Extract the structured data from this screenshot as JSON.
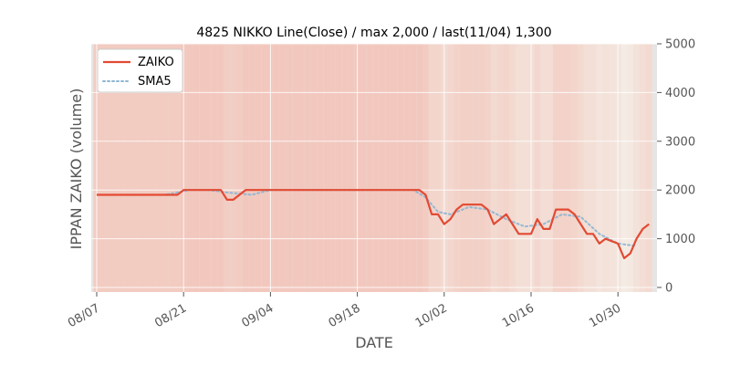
{
  "chart_data": {
    "type": "line",
    "title": "4825 NIKKO Line(Close) / max 2,000 / last(11/04) 1,300",
    "xlabel": "DATE",
    "ylabel": "IPPAN ZAIKO (volume)",
    "ylim": [
      0,
      5000
    ],
    "y_ticks": [
      "0",
      "1000",
      "2000",
      "3000",
      "4000",
      "5000"
    ],
    "y_axis_side": "right",
    "x_tick_labels": [
      "08/07",
      "08/21",
      "09/04",
      "09/18",
      "10/02",
      "10/16",
      "10/30"
    ],
    "grid": true,
    "legend_placement": "upper-left",
    "series": [
      {
        "name": "ZAIKO",
        "color": "#e24a33",
        "style": "solid",
        "x": [
          "08/07",
          "08/08",
          "08/09",
          "08/10",
          "08/11",
          "08/12",
          "08/13",
          "08/14",
          "08/15",
          "08/16",
          "08/17",
          "08/18",
          "08/19",
          "08/20",
          "08/21",
          "08/22",
          "08/23",
          "08/24",
          "08/25",
          "08/26",
          "08/27",
          "08/28",
          "08/29",
          "08/30",
          "08/31",
          "09/01",
          "09/02",
          "09/03",
          "09/04",
          "09/05",
          "09/06",
          "09/07",
          "09/08",
          "09/09",
          "09/10",
          "09/11",
          "09/12",
          "09/13",
          "09/14",
          "09/15",
          "09/16",
          "09/17",
          "09/18",
          "09/19",
          "09/20",
          "09/21",
          "09/22",
          "09/23",
          "09/24",
          "09/25",
          "09/26",
          "09/27",
          "09/28",
          "09/29",
          "09/30",
          "10/01",
          "10/02",
          "10/03",
          "10/04",
          "10/05",
          "10/06",
          "10/07",
          "10/08",
          "10/09",
          "10/10",
          "10/11",
          "10/12",
          "10/13",
          "10/14",
          "10/15",
          "10/16",
          "10/17",
          "10/18",
          "10/19",
          "10/20",
          "10/21",
          "10/22",
          "10/23",
          "10/24",
          "10/25",
          "10/26",
          "10/27",
          "10/28",
          "10/29",
          "10/30",
          "10/31",
          "11/01",
          "11/02",
          "11/03",
          "11/04"
        ],
        "values": [
          1900,
          1900,
          1900,
          1900,
          1900,
          1900,
          1900,
          1900,
          1900,
          1900,
          1900,
          1900,
          1900,
          1900,
          2000,
          2000,
          2000,
          2000,
          2000,
          2000,
          2000,
          1800,
          1800,
          1900,
          2000,
          2000,
          2000,
          2000,
          2000,
          2000,
          2000,
          2000,
          2000,
          2000,
          2000,
          2000,
          2000,
          2000,
          2000,
          2000,
          2000,
          2000,
          2000,
          2000,
          2000,
          2000,
          2000,
          2000,
          2000,
          2000,
          2000,
          2000,
          2000,
          1900,
          1500,
          1500,
          1300,
          1400,
          1600,
          1700,
          1700,
          1700,
          1700,
          1600,
          1300,
          1400,
          1500,
          1300,
          1100,
          1100,
          1100,
          1400,
          1200,
          1200,
          1600,
          1600,
          1600,
          1500,
          1300,
          1100,
          1100,
          900,
          1000,
          950,
          900,
          600,
          700,
          1000,
          1200,
          1300
        ]
      },
      {
        "name": "SMA5",
        "color": "#8eb6d3",
        "style": "dotted",
        "x": [
          "08/11",
          "08/14",
          "08/18",
          "08/22",
          "08/25",
          "08/28",
          "09/01",
          "09/04",
          "09/08",
          "09/12",
          "09/16",
          "09/20",
          "09/24",
          "09/27",
          "09/29",
          "10/01",
          "10/03",
          "10/06",
          "10/09",
          "10/12",
          "10/15",
          "10/18",
          "10/21",
          "10/24",
          "10/27",
          "10/30",
          "11/02"
        ],
        "values": [
          1900,
          1900,
          1900,
          2000,
          2000,
          1950,
          1900,
          2000,
          2000,
          2000,
          2000,
          2000,
          2000,
          2000,
          1850,
          1550,
          1500,
          1650,
          1600,
          1400,
          1250,
          1300,
          1500,
          1450,
          1100,
          900,
          850
        ]
      }
    ]
  }
}
